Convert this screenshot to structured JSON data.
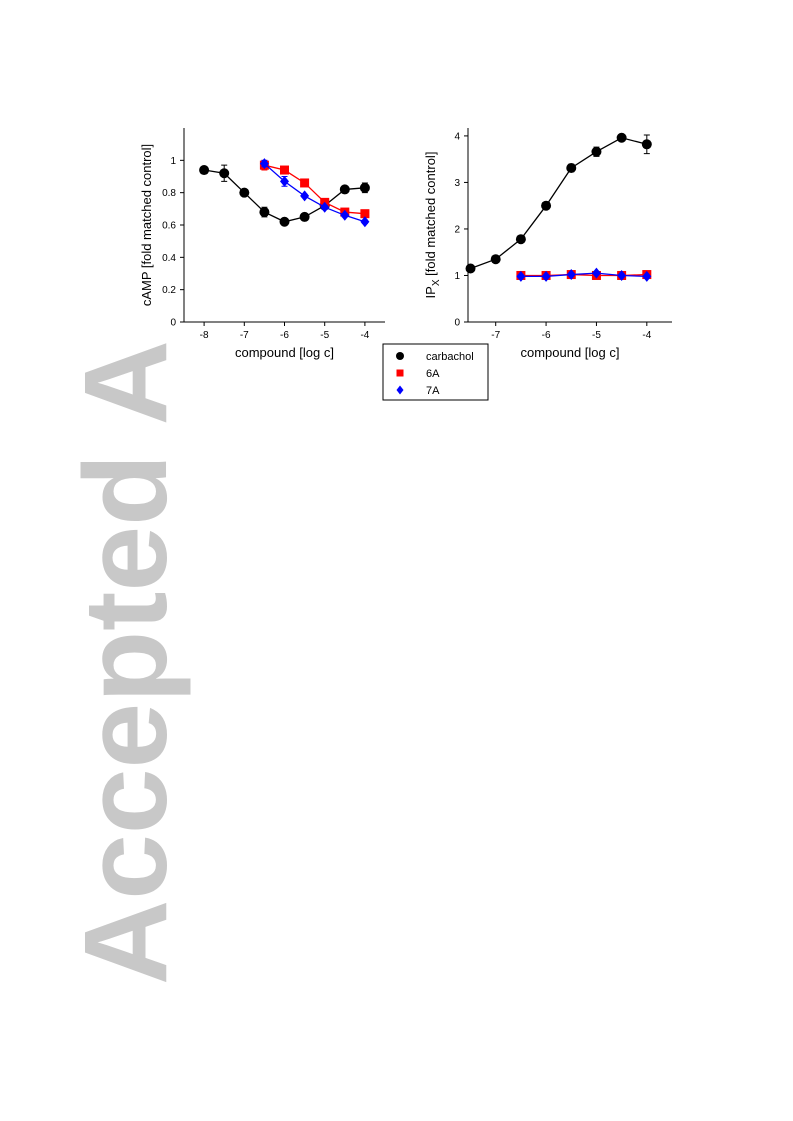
{
  "watermark": "Accepted A",
  "chart_data": [
    {
      "type": "scatter",
      "x_label": "compound [log c]",
      "y_label": "cAMP [fold matched control]",
      "xlim": [
        -8.5,
        -3.5
      ],
      "xticks": [
        -8,
        -7,
        -6,
        -5,
        -4
      ],
      "ylim": [
        0,
        1.2
      ],
      "yticks": [
        0,
        0.2,
        0.4,
        0.6,
        0.8,
        1
      ],
      "series": [
        {
          "name": "carbachol",
          "color": "#000000",
          "marker": "circle",
          "x": [
            -8,
            -7.5,
            -7,
            -6.5,
            -6,
            -5.5,
            -5,
            -4.5,
            -4
          ],
          "values": [
            0.94,
            0.92,
            0.8,
            0.68,
            0.62,
            0.65,
            0.72,
            0.82,
            0.83
          ],
          "errors": [
            0.02,
            0.05,
            0.01,
            0.03,
            0.02,
            0.02,
            0.02,
            0.02,
            0.03
          ]
        },
        {
          "name": "6A",
          "color": "#ff0000",
          "marker": "square",
          "x": [
            -6.5,
            -6,
            -5.5,
            -5,
            -4.5,
            -4
          ],
          "values": [
            0.97,
            0.94,
            0.86,
            0.74,
            0.68,
            0.67
          ],
          "errors": [
            0.03,
            0.02,
            0.02,
            0.02,
            0.01,
            0.02
          ]
        },
        {
          "name": "7A",
          "color": "#0000ff",
          "marker": "diamond",
          "x": [
            -6.5,
            -6,
            -5.5,
            -5,
            -4.5,
            -4
          ],
          "values": [
            0.98,
            0.87,
            0.78,
            0.71,
            0.66,
            0.62
          ],
          "errors": [
            0.02,
            0.03,
            0.01,
            0.01,
            0.01,
            0.01
          ]
        }
      ]
    },
    {
      "type": "scatter",
      "x_label": "compound [log c]",
      "y_label": "IP",
      "y_label_subscript": "X",
      "y_label_suffix": " [fold matched control]",
      "xlim": [
        -7.55,
        -3.5
      ],
      "xticks": [
        -7,
        -6,
        -5,
        -4
      ],
      "ylim": [
        0,
        4.17
      ],
      "yticks": [
        0,
        1,
        2,
        3,
        4
      ],
      "series": [
        {
          "color": "#000000",
          "marker": "circle",
          "x": [
            -7.5,
            -7,
            -6.5,
            -6,
            -5.5,
            -5,
            -4.5,
            -4
          ],
          "values": [
            1.15,
            1.35,
            1.78,
            2.5,
            3.31,
            3.66,
            3.96,
            3.82
          ],
          "errors": [
            0.05,
            0.05,
            0.05,
            0.05,
            0.08,
            0.1,
            0.05,
            0.2
          ]
        },
        {
          "color": "#ff0000",
          "marker": "square",
          "x": [
            -6.5,
            -6,
            -5.5,
            -5,
            -4.5,
            -4
          ],
          "values": [
            1.0,
            1.0,
            1.02,
            1.0,
            1.0,
            1.02
          ],
          "errors": [
            0.03,
            0.03,
            0.03,
            0.03,
            0.03,
            0.03
          ]
        },
        {
          "color": "#0000ff",
          "marker": "diamond",
          "x": [
            -6.5,
            -6,
            -5.5,
            -5,
            -4.5,
            -4
          ],
          "values": [
            0.98,
            0.98,
            1.02,
            1.05,
            1.0,
            0.98
          ],
          "errors": [
            0.02,
            0.02,
            0.02,
            0.02,
            0.02,
            0.02
          ]
        }
      ]
    }
  ]
}
